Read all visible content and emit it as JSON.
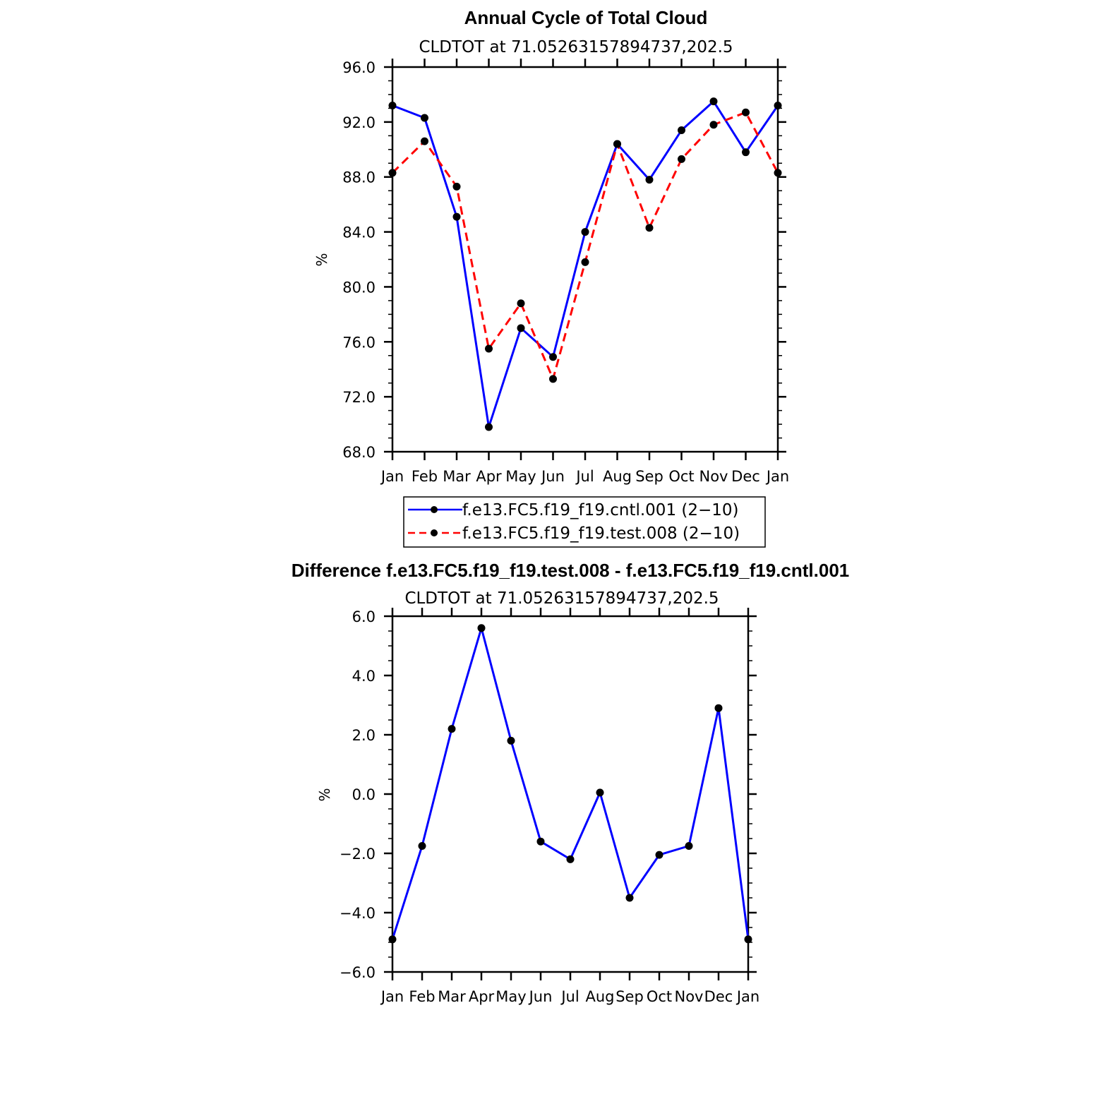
{
  "chart_data": [
    {
      "type": "line",
      "title": "Annual Cycle of Total Cloud",
      "subtitle": "CLDTOT at 71.05263157894737,202.5",
      "ylabel": "%",
      "xlabel": "",
      "ylim": [
        68,
        96
      ],
      "yticks": [
        "68.0",
        "72.0",
        "76.0",
        "80.0",
        "84.0",
        "88.0",
        "92.0",
        "96.0"
      ],
      "categories": [
        "Jan",
        "Feb",
        "Mar",
        "Apr",
        "May",
        "Jun",
        "Jul",
        "Aug",
        "Sep",
        "Oct",
        "Nov",
        "Dec",
        "Jan"
      ],
      "series": [
        {
          "name": "f.e13.FC5.f19_f19.cntl.001 (2−10)",
          "color": "#0000ff",
          "dash": "solid",
          "values": [
            93.2,
            92.3,
            85.1,
            69.8,
            77.0,
            74.9,
            84.0,
            90.4,
            87.8,
            91.4,
            93.5,
            89.8,
            93.2
          ]
        },
        {
          "name": "f.e13.FC5.f19_f19.test.008 (2−10)",
          "color": "#ff0000",
          "dash": "dashed",
          "values": [
            88.3,
            90.6,
            87.3,
            75.5,
            78.8,
            73.3,
            81.8,
            90.4,
            84.3,
            89.3,
            91.8,
            92.7,
            88.3
          ]
        }
      ],
      "legend": "bottom"
    },
    {
      "type": "line",
      "title": "Difference f.e13.FC5.f19_f19.test.008 - f.e13.FC5.f19_f19.cntl.001",
      "subtitle": "CLDTOT at 71.05263157894737,202.5",
      "ylabel": "%",
      "xlabel": "",
      "ylim": [
        -6,
        6
      ],
      "yticks": [
        "−6.0",
        "−4.0",
        "−2.0",
        "0.0",
        "2.0",
        "4.0",
        "6.0"
      ],
      "categories": [
        "Jan",
        "Feb",
        "Mar",
        "Apr",
        "May",
        "Jun",
        "Jul",
        "Aug",
        "Sep",
        "Oct",
        "Nov",
        "Dec",
        "Jan"
      ],
      "series": [
        {
          "name": "difference",
          "color": "#0000ff",
          "dash": "solid",
          "values": [
            -4.9,
            -1.75,
            2.2,
            5.6,
            1.8,
            -1.6,
            -2.2,
            0.05,
            -3.5,
            -2.05,
            -1.75,
            2.9,
            -4.9
          ]
        }
      ]
    }
  ]
}
